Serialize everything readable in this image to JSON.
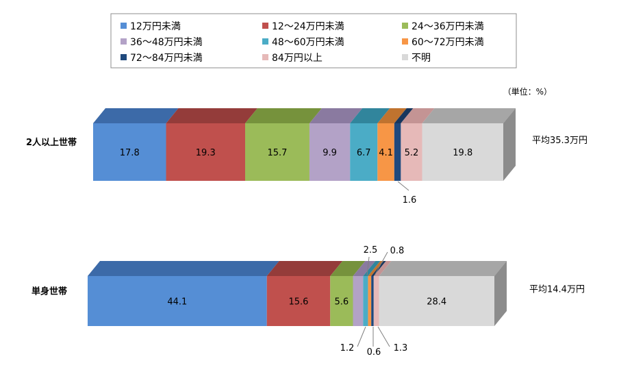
{
  "chart_data": {
    "type": "bar",
    "orientation": "horizontal-stacked-100",
    "unit_note": "（単位：%）",
    "categories": [
      "2人以上世帯",
      "単身世帯"
    ],
    "averages": [
      "平均35.3万円",
      "平均14.4万円"
    ],
    "legend_placement": "top",
    "series": [
      {
        "name": "12万円未満",
        "color": "#558ed5",
        "top": "#3c6aa8",
        "values": [
          17.8,
          44.1
        ]
      },
      {
        "name": "12～24万円未満",
        "color": "#c0504d",
        "top": "#943c3a",
        "values": [
          19.3,
          15.6
        ]
      },
      {
        "name": "24～36万円未満",
        "color": "#9bbb59",
        "top": "#76923c",
        "values": [
          15.7,
          5.6
        ]
      },
      {
        "name": "36～48万円未満",
        "color": "#b3a2c7",
        "top": "#8a7aa0",
        "values": [
          9.9,
          2.5
        ]
      },
      {
        "name": "48～60万円未満",
        "color": "#4bacc6",
        "top": "#31859c",
        "values": [
          6.7,
          1.2
        ]
      },
      {
        "name": "60～72万円未満",
        "color": "#f79646",
        "top": "#c0732f",
        "values": [
          4.1,
          0.8
        ]
      },
      {
        "name": "72～84万円未満",
        "color": "#1f497d",
        "top": "#17365d",
        "values": [
          1.6,
          0.6
        ]
      },
      {
        "name": "84万円以上",
        "color": "#e6b9b8",
        "top": "#c49494",
        "values": [
          5.2,
          1.3
        ]
      },
      {
        "name": "不明",
        "color": "#d9d9d9",
        "top": "#a6a6a6",
        "values": [
          19.8,
          28.4
        ]
      }
    ],
    "labels": [
      [
        "17.8",
        "19.3",
        "15.7",
        "9.9",
        "6.7",
        "4.1",
        "1.6",
        "5.2",
        "19.8"
      ],
      [
        "44.1",
        "15.6",
        "5.6",
        "2.5",
        "1.2",
        "0.8",
        "0.6",
        "1.3",
        "28.4"
      ]
    ]
  }
}
